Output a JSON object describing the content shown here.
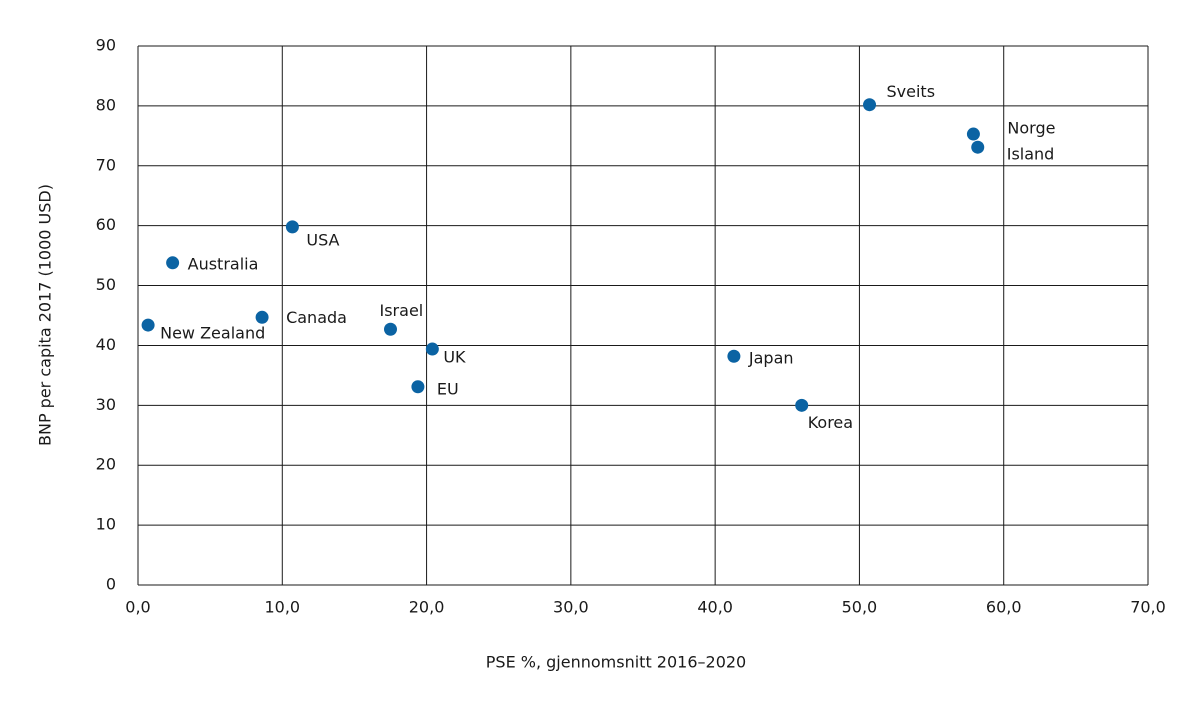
{
  "chart_data": {
    "type": "scatter",
    "x_label": "PSE %, gjennomsnitt 2016–2020",
    "y_label": "BNP per capita 2017 (1000 USD)",
    "color": "#0b63a3",
    "grid": true,
    "labels": [
      "Sveits",
      "Norge",
      "Island",
      "USA",
      "Australia",
      "New Zealand",
      "Canada",
      "Israel",
      "UK",
      "EU",
      "Japan",
      "Korea"
    ],
    "x": [
      50.7,
      57.9,
      58.2,
      10.7,
      2.4,
      0.7,
      8.6,
      17.5,
      20.4,
      19.4,
      41.3,
      46.0
    ],
    "y": [
      80.2,
      75.3,
      73.1,
      59.8,
      53.8,
      43.4,
      44.7,
      42.7,
      39.4,
      33.1,
      38.2,
      30.0
    ],
    "xlim": [
      0,
      70
    ],
    "xticks": [
      {
        "value": 0,
        "label": "0,0"
      },
      {
        "value": 10,
        "label": "10,0"
      },
      {
        "value": 20,
        "label": "20,0"
      },
      {
        "value": 30,
        "label": "30,0"
      },
      {
        "value": 40,
        "label": "40,0"
      },
      {
        "value": 50,
        "label": "50,0"
      },
      {
        "value": 60,
        "label": "60,0"
      },
      {
        "value": 70,
        "label": "70,0"
      }
    ],
    "ylim": [
      0,
      90
    ],
    "yticks": [
      0,
      10,
      20,
      30,
      40,
      50,
      60,
      70,
      80,
      90
    ]
  }
}
